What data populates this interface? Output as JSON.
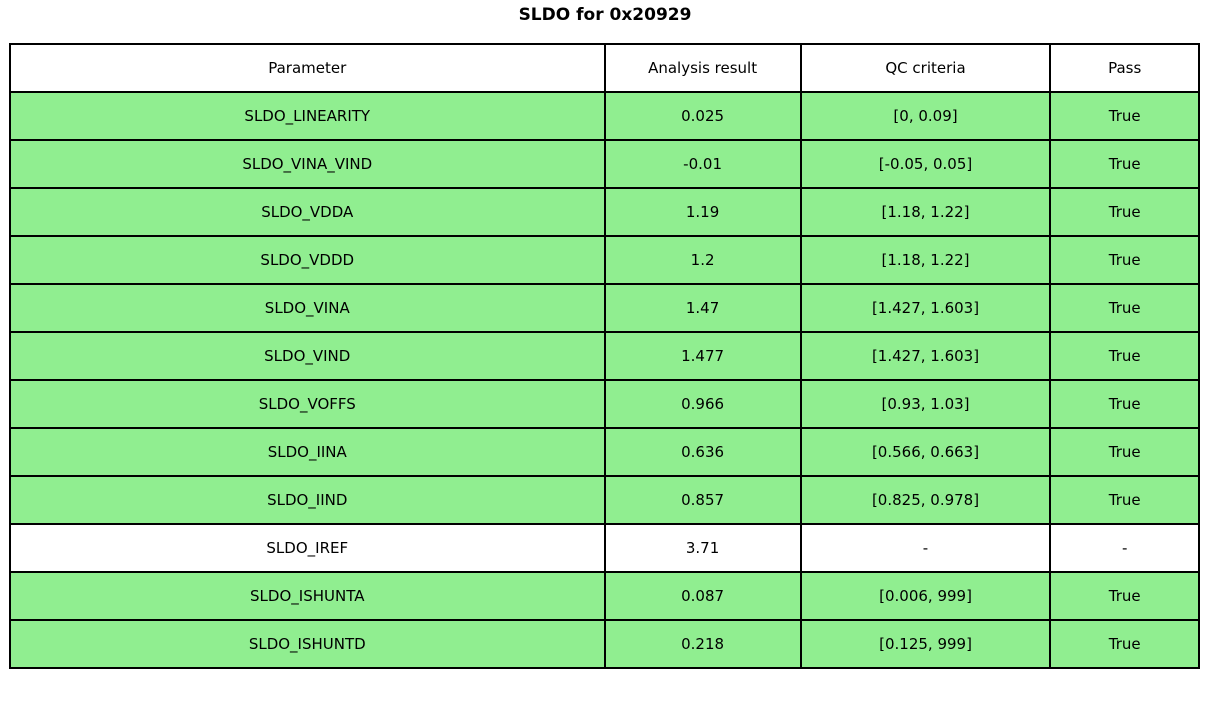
{
  "title": "SLDO for 0x20929",
  "colors": {
    "pass_row_background": "#90EE90",
    "plain_row_background": "#FFFFFF",
    "border": "#000000",
    "text": "#000000"
  },
  "chart_data": {
    "type": "table",
    "title": "SLDO for 0x20929",
    "columns": [
      "Parameter",
      "Analysis result",
      "QC criteria",
      "Pass"
    ],
    "rows": [
      {
        "parameter": "SLDO_LINEARITY",
        "result": "0.025",
        "criteria": "[0, 0.09]",
        "pass": "True",
        "highlight": true
      },
      {
        "parameter": "SLDO_VINA_VIND",
        "result": "-0.01",
        "criteria": "[-0.05, 0.05]",
        "pass": "True",
        "highlight": true
      },
      {
        "parameter": "SLDO_VDDA",
        "result": "1.19",
        "criteria": "[1.18, 1.22]",
        "pass": "True",
        "highlight": true
      },
      {
        "parameter": "SLDO_VDDD",
        "result": "1.2",
        "criteria": "[1.18, 1.22]",
        "pass": "True",
        "highlight": true
      },
      {
        "parameter": "SLDO_VINA",
        "result": "1.47",
        "criteria": "[1.427, 1.603]",
        "pass": "True",
        "highlight": true
      },
      {
        "parameter": "SLDO_VIND",
        "result": "1.477",
        "criteria": "[1.427, 1.603]",
        "pass": "True",
        "highlight": true
      },
      {
        "parameter": "SLDO_VOFFS",
        "result": "0.966",
        "criteria": "[0.93, 1.03]",
        "pass": "True",
        "highlight": true
      },
      {
        "parameter": "SLDO_IINA",
        "result": "0.636",
        "criteria": "[0.566, 0.663]",
        "pass": "True",
        "highlight": true
      },
      {
        "parameter": "SLDO_IIND",
        "result": "0.857",
        "criteria": "[0.825, 0.978]",
        "pass": "True",
        "highlight": true
      },
      {
        "parameter": "SLDO_IREF",
        "result": "3.71",
        "criteria": "-",
        "pass": "-",
        "highlight": false
      },
      {
        "parameter": "SLDO_ISHUNTA",
        "result": "0.087",
        "criteria": "[0.006, 999]",
        "pass": "True",
        "highlight": true
      },
      {
        "parameter": "SLDO_ISHUNTD",
        "result": "0.218",
        "criteria": "[0.125, 999]",
        "pass": "True",
        "highlight": true
      }
    ]
  }
}
